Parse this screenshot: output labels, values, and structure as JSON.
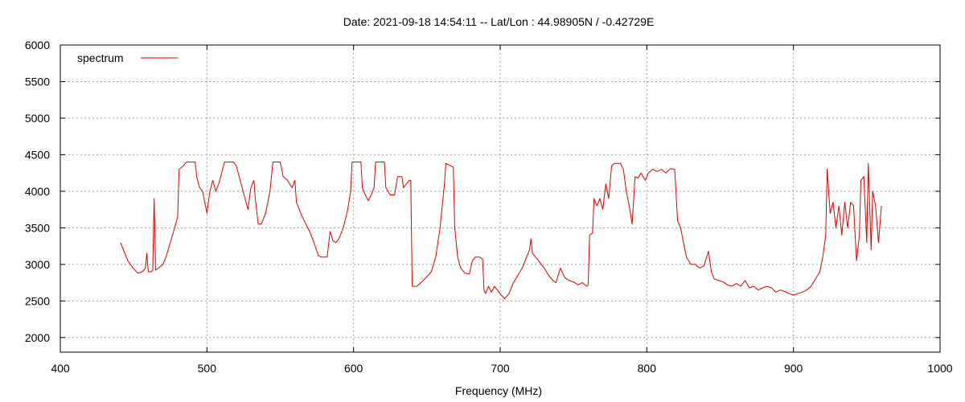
{
  "chart_data": {
    "type": "line",
    "title": "Date: 2021-09-18 14:54:11  --  Lat/Lon : 44.98905N / -0.42729E",
    "xlabel": "Frequency (MHz)",
    "ylabel": "",
    "xlim": [
      400,
      1000
    ],
    "ylim": [
      1800,
      6000
    ],
    "x_ticks": [
      400,
      500,
      600,
      700,
      800,
      900,
      1000
    ],
    "y_ticks": [
      2000,
      2500,
      3000,
      3500,
      4000,
      4500,
      5000,
      5500,
      6000
    ],
    "grid": true,
    "legend_position": "top-left",
    "series": [
      {
        "name": "spectrum",
        "color": "#e00000",
        "points": [
          [
            441,
            3300
          ],
          [
            443,
            3200
          ],
          [
            446,
            3050
          ],
          [
            450,
            2940
          ],
          [
            453,
            2880
          ],
          [
            456,
            2900
          ],
          [
            458,
            2950
          ],
          [
            459,
            3150
          ],
          [
            460,
            2900
          ],
          [
            462,
            2900
          ],
          [
            463,
            2920
          ],
          [
            464,
            3900
          ],
          [
            465,
            2920
          ],
          [
            467,
            2950
          ],
          [
            470,
            3000
          ],
          [
            472,
            3100
          ],
          [
            475,
            3300
          ],
          [
            478,
            3500
          ],
          [
            480,
            3650
          ],
          [
            481,
            4300
          ],
          [
            484,
            4350
          ],
          [
            486,
            4400
          ],
          [
            490,
            4400
          ],
          [
            492,
            4400
          ],
          [
            493,
            4200
          ],
          [
            495,
            4050
          ],
          [
            497,
            4000
          ],
          [
            499,
            3800
          ],
          [
            500,
            3700
          ],
          [
            502,
            4000
          ],
          [
            504,
            4150
          ],
          [
            506,
            4000
          ],
          [
            508,
            4100
          ],
          [
            510,
            4250
          ],
          [
            512,
            4400
          ],
          [
            518,
            4400
          ],
          [
            520,
            4350
          ],
          [
            522,
            4200
          ],
          [
            524,
            4050
          ],
          [
            526,
            3900
          ],
          [
            528,
            3750
          ],
          [
            530,
            4050
          ],
          [
            532,
            4150
          ],
          [
            533,
            3900
          ],
          [
            535,
            3550
          ],
          [
            537,
            3550
          ],
          [
            540,
            3700
          ],
          [
            543,
            4000
          ],
          [
            545,
            4400
          ],
          [
            550,
            4400
          ],
          [
            552,
            4200
          ],
          [
            555,
            4150
          ],
          [
            558,
            4050
          ],
          [
            560,
            4150
          ],
          [
            561,
            3850
          ],
          [
            565,
            3650
          ],
          [
            570,
            3450
          ],
          [
            573,
            3300
          ],
          [
            576,
            3120
          ],
          [
            578,
            3100
          ],
          [
            582,
            3100
          ],
          [
            584,
            3450
          ],
          [
            586,
            3320
          ],
          [
            588,
            3300
          ],
          [
            590,
            3350
          ],
          [
            593,
            3500
          ],
          [
            596,
            3750
          ],
          [
            598,
            4000
          ],
          [
            599,
            4400
          ],
          [
            605,
            4400
          ],
          [
            606,
            4050
          ],
          [
            608,
            3950
          ],
          [
            610,
            3870
          ],
          [
            612,
            3950
          ],
          [
            614,
            4050
          ],
          [
            615,
            4400
          ],
          [
            621,
            4400
          ],
          [
            622,
            4050
          ],
          [
            625,
            3950
          ],
          [
            628,
            3950
          ],
          [
            630,
            4200
          ],
          [
            633,
            4200
          ],
          [
            634,
            4050
          ],
          [
            636,
            4100
          ],
          [
            638,
            4150
          ],
          [
            639,
            4150
          ],
          [
            640,
            2700
          ],
          [
            643,
            2700
          ],
          [
            646,
            2750
          ],
          [
            650,
            2830
          ],
          [
            653,
            2900
          ],
          [
            656,
            3100
          ],
          [
            659,
            3500
          ],
          [
            662,
            4100
          ],
          [
            663,
            4380
          ],
          [
            668,
            4330
          ],
          [
            669,
            3500
          ],
          [
            671,
            3100
          ],
          [
            673,
            2950
          ],
          [
            676,
            2880
          ],
          [
            679,
            2870
          ],
          [
            681,
            3050
          ],
          [
            683,
            3100
          ],
          [
            686,
            3100
          ],
          [
            688,
            3070
          ],
          [
            689,
            2650
          ],
          [
            690,
            2600
          ],
          [
            692,
            2700
          ],
          [
            694,
            2620
          ],
          [
            696,
            2700
          ],
          [
            698,
            2650
          ],
          [
            700,
            2600
          ],
          [
            703,
            2530
          ],
          [
            706,
            2600
          ],
          [
            709,
            2750
          ],
          [
            712,
            2850
          ],
          [
            715,
            2950
          ],
          [
            718,
            3100
          ],
          [
            720,
            3200
          ],
          [
            721,
            3350
          ],
          [
            722,
            3150
          ],
          [
            725,
            3080
          ],
          [
            728,
            3000
          ],
          [
            730,
            2950
          ],
          [
            733,
            2850
          ],
          [
            736,
            2780
          ],
          [
            738,
            2750
          ],
          [
            741,
            2950
          ],
          [
            744,
            2820
          ],
          [
            747,
            2780
          ],
          [
            750,
            2760
          ],
          [
            753,
            2720
          ],
          [
            756,
            2750
          ],
          [
            759,
            2700
          ],
          [
            760,
            2720
          ],
          [
            761,
            3400
          ],
          [
            763,
            3430
          ],
          [
            764,
            3900
          ],
          [
            766,
            3800
          ],
          [
            768,
            3900
          ],
          [
            770,
            3750
          ],
          [
            772,
            4100
          ],
          [
            774,
            3900
          ],
          [
            776,
            4350
          ],
          [
            778,
            4380
          ],
          [
            782,
            4380
          ],
          [
            784,
            4300
          ],
          [
            786,
            4000
          ],
          [
            788,
            3800
          ],
          [
            790,
            3550
          ],
          [
            792,
            4200
          ],
          [
            794,
            4180
          ],
          [
            796,
            4250
          ],
          [
            799,
            4150
          ],
          [
            801,
            4250
          ],
          [
            804,
            4300
          ],
          [
            807,
            4270
          ],
          [
            810,
            4300
          ],
          [
            813,
            4250
          ],
          [
            816,
            4310
          ],
          [
            819,
            4300
          ],
          [
            821,
            3600
          ],
          [
            823,
            3500
          ],
          [
            825,
            3300
          ],
          [
            827,
            3100
          ],
          [
            830,
            3000
          ],
          [
            833,
            3000
          ],
          [
            836,
            2950
          ],
          [
            839,
            2980
          ],
          [
            842,
            3180
          ],
          [
            844,
            2900
          ],
          [
            846,
            2800
          ],
          [
            849,
            2780
          ],
          [
            852,
            2760
          ],
          [
            855,
            2720
          ],
          [
            858,
            2700
          ],
          [
            861,
            2740
          ],
          [
            864,
            2700
          ],
          [
            867,
            2780
          ],
          [
            870,
            2680
          ],
          [
            873,
            2700
          ],
          [
            876,
            2650
          ],
          [
            879,
            2680
          ],
          [
            882,
            2700
          ],
          [
            885,
            2680
          ],
          [
            888,
            2620
          ],
          [
            891,
            2650
          ],
          [
            894,
            2630
          ],
          [
            897,
            2600
          ],
          [
            900,
            2580
          ],
          [
            903,
            2600
          ],
          [
            906,
            2620
          ],
          [
            909,
            2650
          ],
          [
            912,
            2700
          ],
          [
            915,
            2800
          ],
          [
            918,
            2900
          ],
          [
            920,
            3100
          ],
          [
            922,
            3400
          ],
          [
            923,
            4300
          ],
          [
            925,
            3700
          ],
          [
            927,
            3850
          ],
          [
            929,
            3500
          ],
          [
            931,
            3800
          ],
          [
            933,
            3400
          ],
          [
            935,
            3850
          ],
          [
            937,
            3500
          ],
          [
            939,
            3850
          ],
          [
            941,
            3800
          ],
          [
            943,
            3050
          ],
          [
            945,
            3400
          ],
          [
            946,
            4150
          ],
          [
            948,
            4200
          ],
          [
            950,
            3300
          ],
          [
            951,
            4380
          ],
          [
            952,
            3800
          ],
          [
            953,
            3200
          ],
          [
            954,
            4000
          ],
          [
            956,
            3800
          ],
          [
            958,
            3300
          ],
          [
            960,
            3800
          ]
        ]
      }
    ]
  }
}
